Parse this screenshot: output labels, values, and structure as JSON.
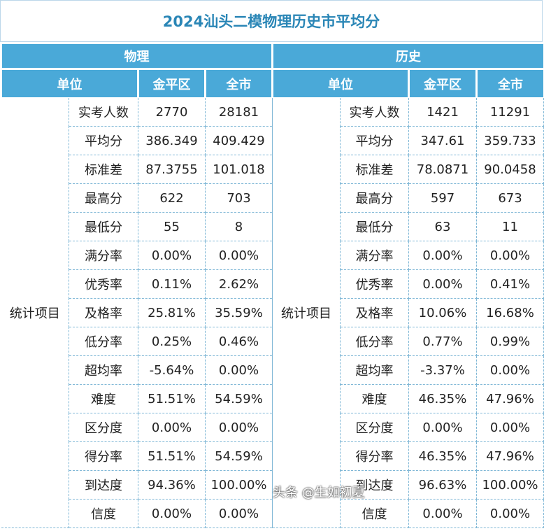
{
  "title": "2024汕头二模物理历史市平均分",
  "physics": {
    "group": "物理",
    "headers": [
      "单位",
      "金平区",
      "全市"
    ],
    "item_label": "统计项目",
    "rows": [
      {
        "name": "实考人数",
        "a": "2770",
        "b": "28181"
      },
      {
        "name": "平均分",
        "a": "386.349",
        "b": "409.429"
      },
      {
        "name": "标准差",
        "a": "87.3755",
        "b": "101.018"
      },
      {
        "name": "最高分",
        "a": "622",
        "b": "703"
      },
      {
        "name": "最低分",
        "a": "55",
        "b": "8"
      },
      {
        "name": "满分率",
        "a": "0.00%",
        "b": "0.00%"
      },
      {
        "name": "优秀率",
        "a": "0.11%",
        "b": "2.62%"
      },
      {
        "name": "及格率",
        "a": "25.81%",
        "b": "35.59%"
      },
      {
        "name": "低分率",
        "a": "0.25%",
        "b": "0.46%"
      },
      {
        "name": "超均率",
        "a": "-5.64%",
        "b": "0.00%"
      },
      {
        "name": "难度",
        "a": "51.51%",
        "b": "54.59%"
      },
      {
        "name": "区分度",
        "a": "0.00%",
        "b": "0.00%"
      },
      {
        "name": "得分率",
        "a": "51.51%",
        "b": "54.59%"
      },
      {
        "name": "到达度",
        "a": "94.36%",
        "b": "100.00%"
      },
      {
        "name": "信度",
        "a": "0.00%",
        "b": "0.00%"
      }
    ]
  },
  "history": {
    "group": "历史",
    "headers": [
      "单位",
      "金平区",
      "全市"
    ],
    "item_label": "统计项目",
    "rows": [
      {
        "name": "实考人数",
        "a": "1421",
        "b": "11291"
      },
      {
        "name": "平均分",
        "a": "347.61",
        "b": "359.733"
      },
      {
        "name": "标准差",
        "a": "78.0871",
        "b": "90.0458"
      },
      {
        "name": "最高分",
        "a": "597",
        "b": "673"
      },
      {
        "name": "最低分",
        "a": "63",
        "b": "11"
      },
      {
        "name": "满分率",
        "a": "0.00%",
        "b": "0.00%"
      },
      {
        "name": "优秀率",
        "a": "0.00%",
        "b": "0.41%"
      },
      {
        "name": "及格率",
        "a": "10.06%",
        "b": "16.68%"
      },
      {
        "name": "低分率",
        "a": "0.77%",
        "b": "0.99%"
      },
      {
        "name": "超均率",
        "a": "-3.37%",
        "b": "0.00%"
      },
      {
        "name": "难度",
        "a": "46.35%",
        "b": "47.96%"
      },
      {
        "name": "区分度",
        "a": "0.00%",
        "b": "0.00%"
      },
      {
        "name": "得分率",
        "a": "46.35%",
        "b": "47.96%"
      },
      {
        "name": "到达度",
        "a": "96.63%",
        "b": "100.00%"
      },
      {
        "name": "信度",
        "a": "0.00%",
        "b": "0.00%"
      }
    ]
  },
  "watermark": "头条 @生如初夏"
}
